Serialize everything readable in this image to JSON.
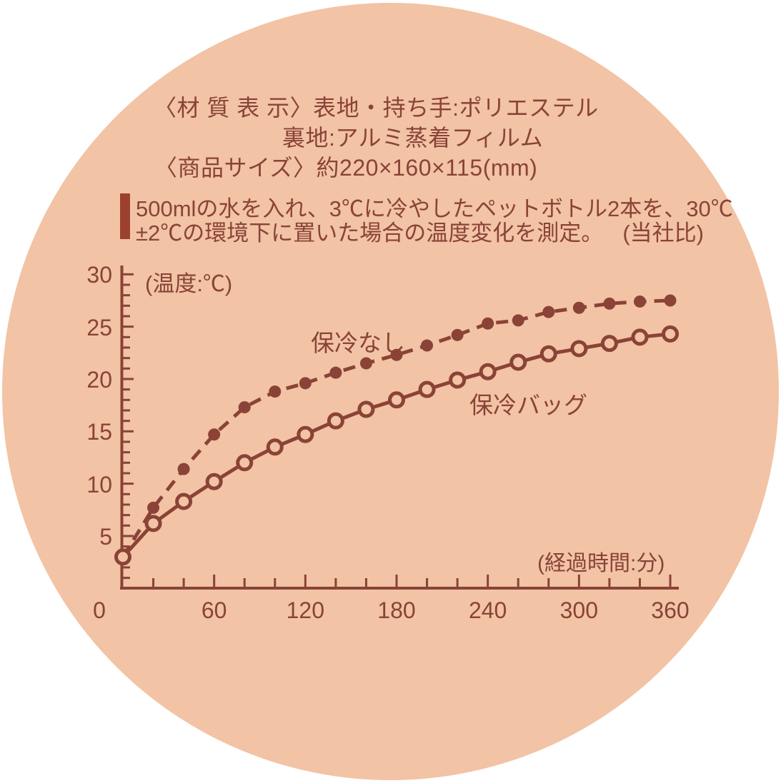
{
  "page": {
    "background_color": "#ffffff"
  },
  "panel": {
    "shape": "circle",
    "color": "#f2c3a5",
    "ink_color": "#8a4336",
    "accent_bar_color": "#9c4130"
  },
  "header": {
    "material_label_line1": "〈材 質 表 示〉表地・持ち手:ポリエステル",
    "material_label_line2": "裏地:アルミ蒸着フィルム",
    "product_size_line": "〈商品サイズ〉約220×160×115(mm)",
    "test_note_line1": "500mlの水を入れ、3℃に冷やしたペットボトル2本を、30℃",
    "test_note_line2": "±2℃の環境下に置いた場合の温度変化を測定。",
    "test_note_comparison": "(当社比)"
  },
  "chart_data": {
    "type": "line",
    "title": "",
    "xlabel": "(経過時間:分)",
    "ylabel": "(温度:℃)",
    "xlim": [
      0,
      360
    ],
    "ylim": [
      0,
      30
    ],
    "grid": false,
    "legend_position": "inline-labels",
    "x_major_tick_step": 60,
    "x_minor_tick_step": 20,
    "y_major_tick_step": 5,
    "y_minor_tick_step": 1,
    "x_tick_labels": [
      "0",
      "60",
      "120",
      "180",
      "240",
      "300",
      "360"
    ],
    "y_tick_labels": [
      "5",
      "10",
      "15",
      "20",
      "25",
      "30"
    ],
    "x": [
      0,
      20,
      40,
      60,
      80,
      100,
      120,
      140,
      160,
      180,
      200,
      220,
      240,
      260,
      280,
      300,
      320,
      340,
      360
    ],
    "series": [
      {
        "name": "保冷なし",
        "line_style": "dashed",
        "marker": "filled-dot",
        "first_point_marker": false,
        "values": [
          3,
          7.7,
          11.4,
          14.7,
          17.3,
          18.8,
          19.6,
          20.6,
          21.5,
          22.3,
          23.2,
          24.2,
          25.3,
          25.6,
          26.4,
          26.8,
          27.2,
          27.4,
          27.5
        ]
      },
      {
        "name": "保冷バッグ",
        "line_style": "solid",
        "marker": "open-circle",
        "first_point_marker": true,
        "values": [
          3,
          6.2,
          8.3,
          10.2,
          12,
          13.5,
          14.7,
          16,
          17.1,
          18,
          19,
          19.9,
          20.7,
          21.6,
          22.4,
          22.9,
          23.4,
          24,
          24.3
        ]
      }
    ]
  }
}
